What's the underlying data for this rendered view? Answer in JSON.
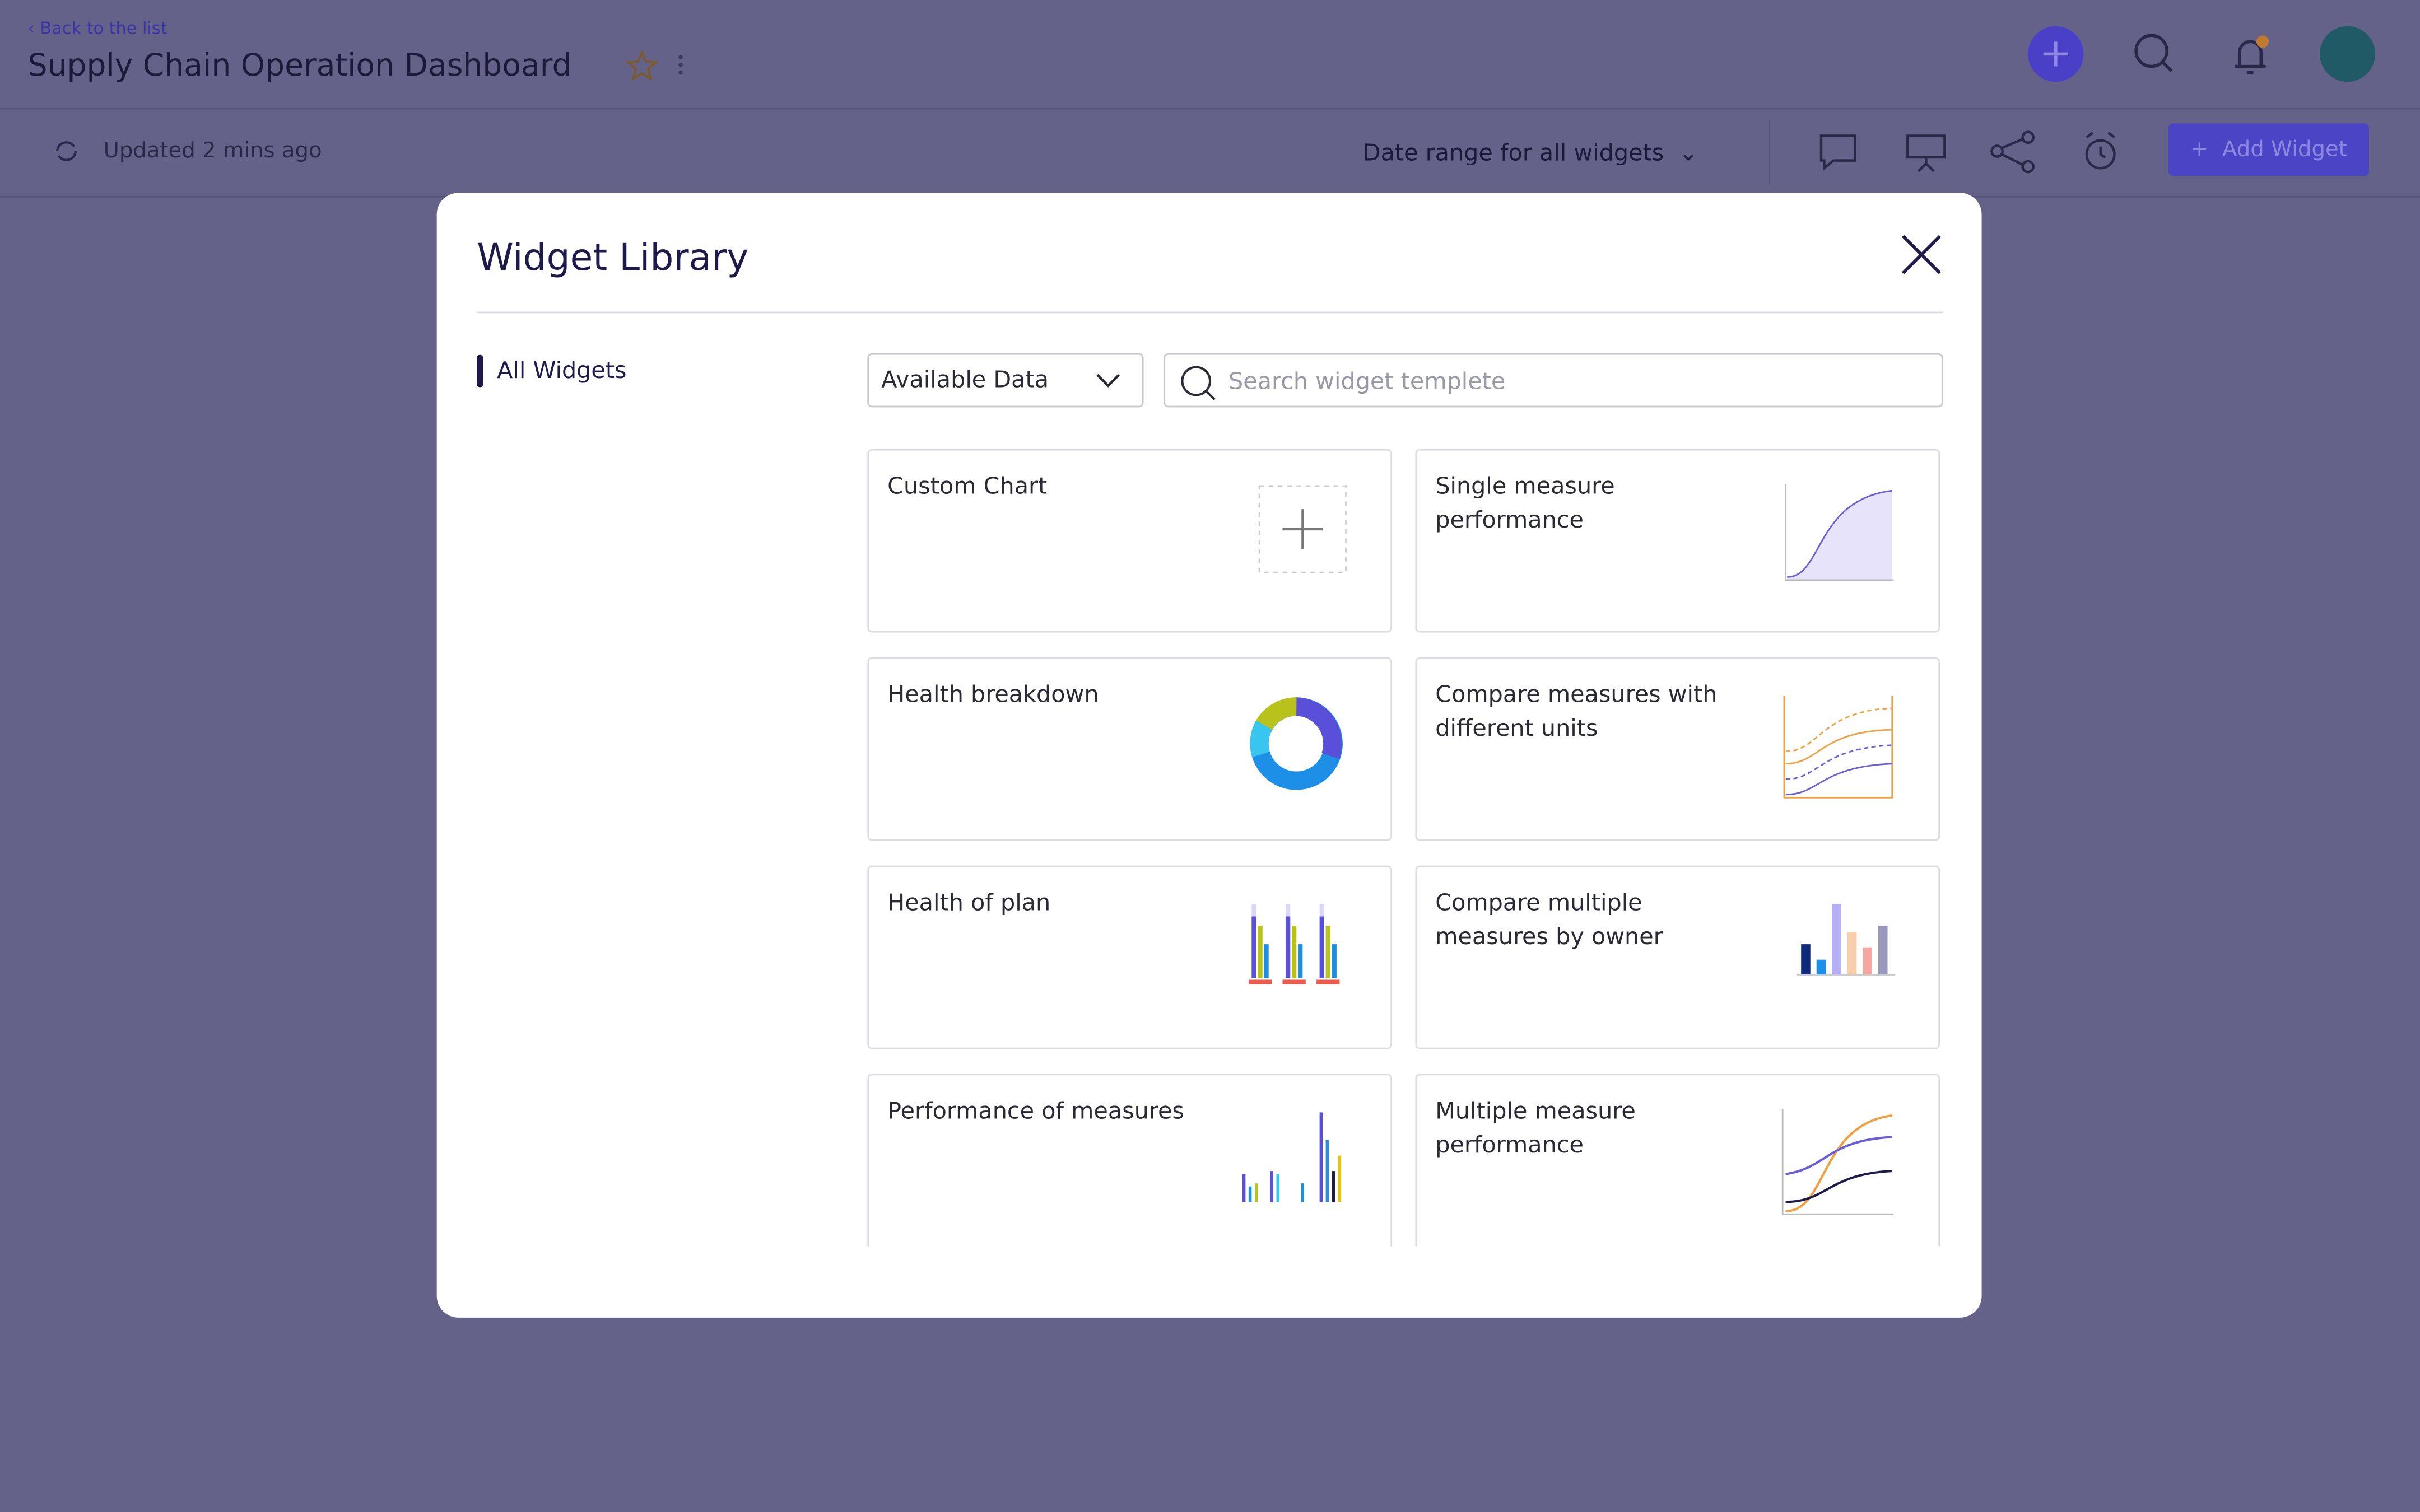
{
  "header": {
    "back_link": "Back to the list",
    "title": "Supply Chain Operation Dashboard"
  },
  "toolbar": {
    "updated": "Updated 2 mins ago",
    "date_range": "Date range for all widgets",
    "add_widget": "Add Widget"
  },
  "modal": {
    "title": "Widget Library",
    "sidebar": [
      "All Widgets"
    ],
    "filter": "Available Data",
    "search_placeholder": "Search widget templete",
    "widgets": [
      "Custom Chart",
      "Single measure performance",
      "Health breakdown",
      "Compare measures with different units",
      "Health of plan",
      "Compare multiple measures by owner",
      "Performance of measures",
      "Multiple measure performance"
    ]
  }
}
